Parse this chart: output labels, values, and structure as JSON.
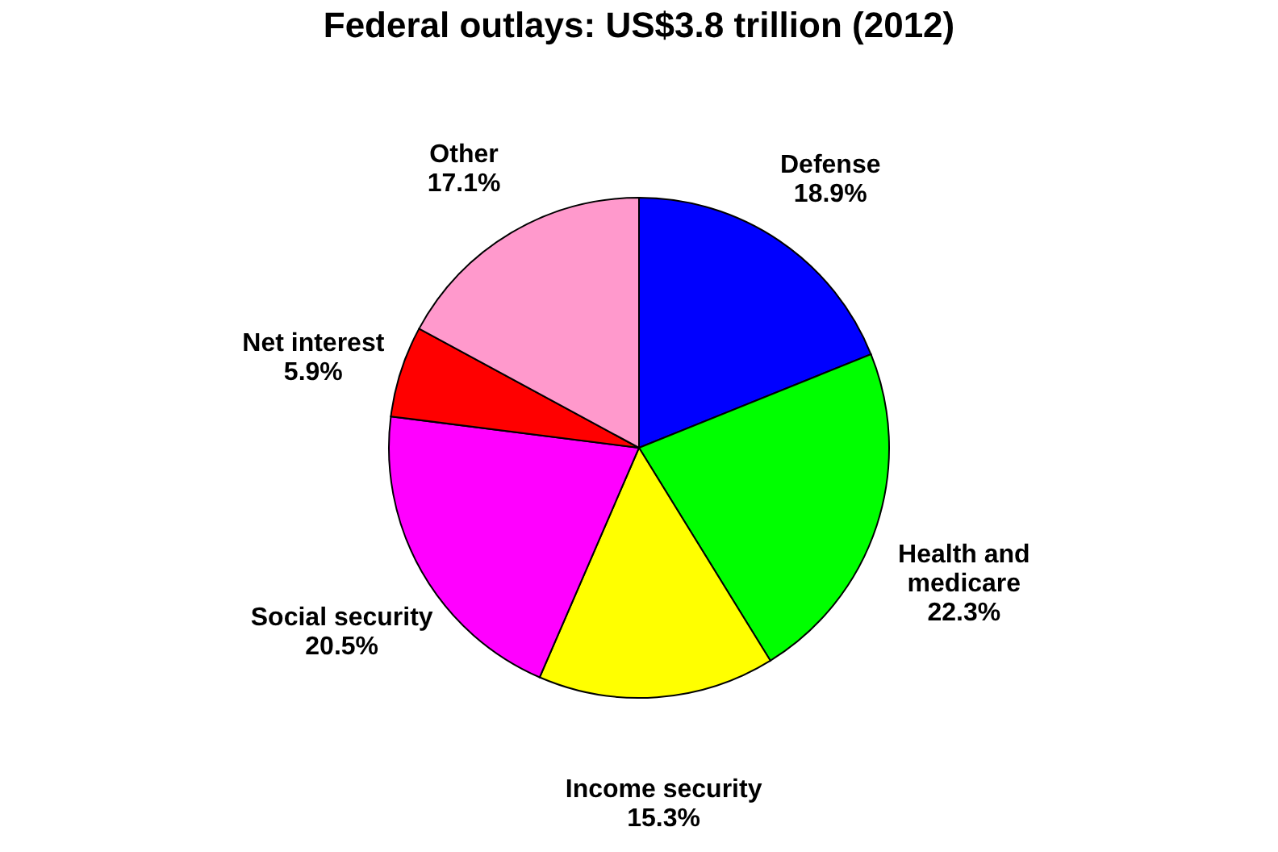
{
  "chart_data": {
    "type": "pie",
    "title": "Federal outlays: US$3.8 trillion (2012)",
    "categories": [
      "Defense",
      "Health and medicare",
      "Income security",
      "Social security",
      "Net interest",
      "Other"
    ],
    "values": [
      18.9,
      22.3,
      15.3,
      20.5,
      5.9,
      17.1
    ],
    "colors": [
      "#0000ff",
      "#00ff00",
      "#ffff00",
      "#ff00ff",
      "#ff0000",
      "#ff99cc"
    ],
    "value_labels": [
      "18.9%",
      "22.3%",
      "15.3%",
      "20.5%",
      "5.9%",
      "17.1%"
    ],
    "legend": false
  }
}
